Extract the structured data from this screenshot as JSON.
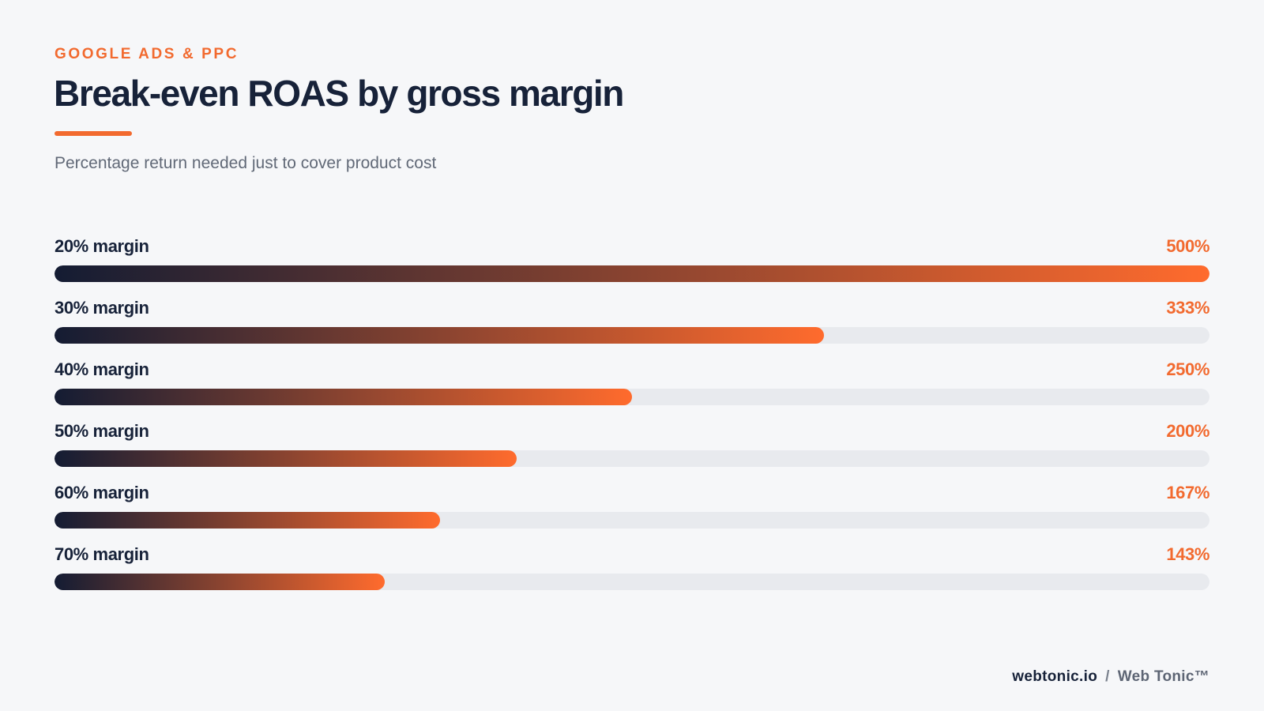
{
  "header": {
    "eyebrow": "GOOGLE ADS & PPC",
    "title": "Break-even ROAS by gross margin",
    "subtitle": "Percentage return needed just to cover product cost"
  },
  "colors": {
    "accent": "#f26a2f",
    "navy": "#172239",
    "bar_start": "#141c33",
    "bar_end": "#ff6b2d",
    "track": "#e8eaee",
    "background": "#f6f7f9"
  },
  "chart_data": {
    "type": "bar",
    "orientation": "horizontal",
    "categories": [
      "20% margin",
      "30% margin",
      "40% margin",
      "50% margin",
      "60% margin",
      "70% margin"
    ],
    "values": [
      500,
      333,
      250,
      200,
      167,
      143
    ],
    "value_labels": [
      "500%",
      "333%",
      "250%",
      "200%",
      "167%",
      "143%"
    ],
    "max_value": 500,
    "title": "Break-even ROAS by gross margin",
    "subtitle": "Percentage return needed just to cover product cost",
    "grid": false,
    "legend": "none"
  },
  "footer": {
    "domain": "webtonic.io",
    "separator": "/",
    "brand": "Web Tonic™"
  }
}
